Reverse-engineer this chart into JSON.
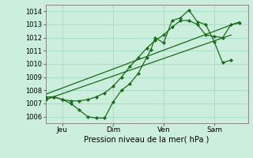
{
  "xlabel": "Pression niveau de la mer( hPa )",
  "bg_color": "#cceedd",
  "grid_color": "#aaddcc",
  "line_color": "#1a6b1a",
  "ylim": [
    1005.5,
    1014.5
  ],
  "xlim": [
    0,
    96
  ],
  "yticks": [
    1006,
    1007,
    1008,
    1009,
    1010,
    1011,
    1012,
    1013,
    1014
  ],
  "xtick_positions": [
    8,
    32,
    56,
    80
  ],
  "xtick_labels": [
    "Jeu",
    "Dim",
    "Ven",
    "Sam"
  ],
  "vlines": [
    8,
    32,
    56,
    80
  ],
  "series1_x": [
    0,
    4,
    8,
    12,
    16,
    20,
    24,
    28,
    32,
    36,
    40,
    44,
    48,
    50,
    52,
    56,
    60,
    64,
    68,
    72,
    76,
    80,
    84,
    88
  ],
  "series1_y": [
    1007.3,
    1007.5,
    1007.3,
    1007.0,
    1006.5,
    1006.0,
    1005.9,
    1005.9,
    1007.1,
    1008.0,
    1008.5,
    1009.3,
    1010.5,
    1011.1,
    1012.0,
    1011.6,
    1013.3,
    1013.5,
    1014.1,
    1013.2,
    1013.0,
    1011.7,
    1010.1,
    1010.3
  ],
  "series2_x": [
    0,
    4,
    8,
    12,
    16,
    20,
    24,
    28,
    32,
    36,
    40,
    44,
    48,
    52,
    56,
    60,
    64,
    68,
    72,
    76,
    80,
    84,
    88,
    92
  ],
  "series2_y": [
    1007.5,
    1007.5,
    1007.3,
    1007.2,
    1007.2,
    1007.3,
    1007.5,
    1007.8,
    1008.3,
    1009.0,
    1009.8,
    1010.5,
    1011.2,
    1011.8,
    1012.2,
    1012.8,
    1013.3,
    1013.3,
    1013.0,
    1012.2,
    1012.1,
    1012.0,
    1013.0,
    1013.1
  ],
  "trend1_x": [
    0,
    88
  ],
  "trend1_y": [
    1007.3,
    1012.2
  ],
  "trend2_x": [
    0,
    92
  ],
  "trend2_y": [
    1007.7,
    1013.2
  ]
}
